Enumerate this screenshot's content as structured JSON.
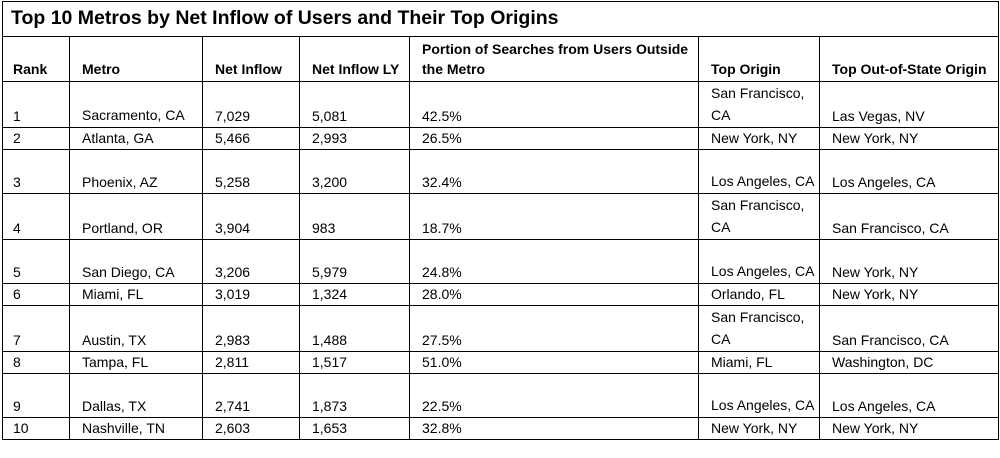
{
  "title": "Top 10 Metros by Net Inflow of Users and Their Top Origins",
  "headers": {
    "rank": "Rank",
    "metro": "Metro",
    "net_inflow": "Net Inflow",
    "net_inflow_ly": "Net Inflow LY",
    "portion": "Portion of Searches from Users Outside the Metro",
    "top_origin": "Top Origin",
    "top_oos_origin": "Top Out-of-State Origin"
  },
  "rows": [
    {
      "rank": "1",
      "metro": "Sacramento, CA",
      "net_inflow": "7,029",
      "net_inflow_ly": "5,081",
      "portion": "42.5%",
      "top_origin": "San Francisco, CA",
      "top_oos_origin": "Las Vegas, NV"
    },
    {
      "rank": "2",
      "metro": "Atlanta, GA",
      "net_inflow": "5,466",
      "net_inflow_ly": "2,993",
      "portion": "26.5%",
      "top_origin": "New York, NY",
      "top_oos_origin": "New York, NY"
    },
    {
      "rank": "3",
      "metro": "Phoenix, AZ",
      "net_inflow": "5,258",
      "net_inflow_ly": "3,200",
      "portion": "32.4%",
      "top_origin": "Los Angeles, CA",
      "top_oos_origin": "Los Angeles, CA"
    },
    {
      "rank": "4",
      "metro": "Portland, OR",
      "net_inflow": "3,904",
      "net_inflow_ly": "983",
      "portion": "18.7%",
      "top_origin": "San Francisco, CA",
      "top_oos_origin": "San Francisco, CA"
    },
    {
      "rank": "5",
      "metro": "San Diego, CA",
      "net_inflow": "3,206",
      "net_inflow_ly": "5,979",
      "portion": "24.8%",
      "top_origin": "Los Angeles, CA",
      "top_oos_origin": "New York, NY"
    },
    {
      "rank": "6",
      "metro": "Miami, FL",
      "net_inflow": "3,019",
      "net_inflow_ly": "1,324",
      "portion": "28.0%",
      "top_origin": "Orlando, FL",
      "top_oos_origin": "New York, NY"
    },
    {
      "rank": "7",
      "metro": "Austin, TX",
      "net_inflow": "2,983",
      "net_inflow_ly": "1,488",
      "portion": "27.5%",
      "top_origin": "San Francisco, CA",
      "top_oos_origin": "San Francisco, CA"
    },
    {
      "rank": "8",
      "metro": "Tampa, FL",
      "net_inflow": "2,811",
      "net_inflow_ly": "1,517",
      "portion": "51.0%",
      "top_origin": "Miami, FL",
      "top_oos_origin": "Washington, DC"
    },
    {
      "rank": "9",
      "metro": "Dallas, TX",
      "net_inflow": "2,741",
      "net_inflow_ly": "1,873",
      "portion": "22.5%",
      "top_origin": "Los Angeles, CA",
      "top_oos_origin": "Los Angeles, CA"
    },
    {
      "rank": "10",
      "metro": "Nashville, TN",
      "net_inflow": "2,603",
      "net_inflow_ly": "1,653",
      "portion": "32.8%",
      "top_origin": "New York, NY",
      "top_oos_origin": "New York, NY"
    }
  ]
}
